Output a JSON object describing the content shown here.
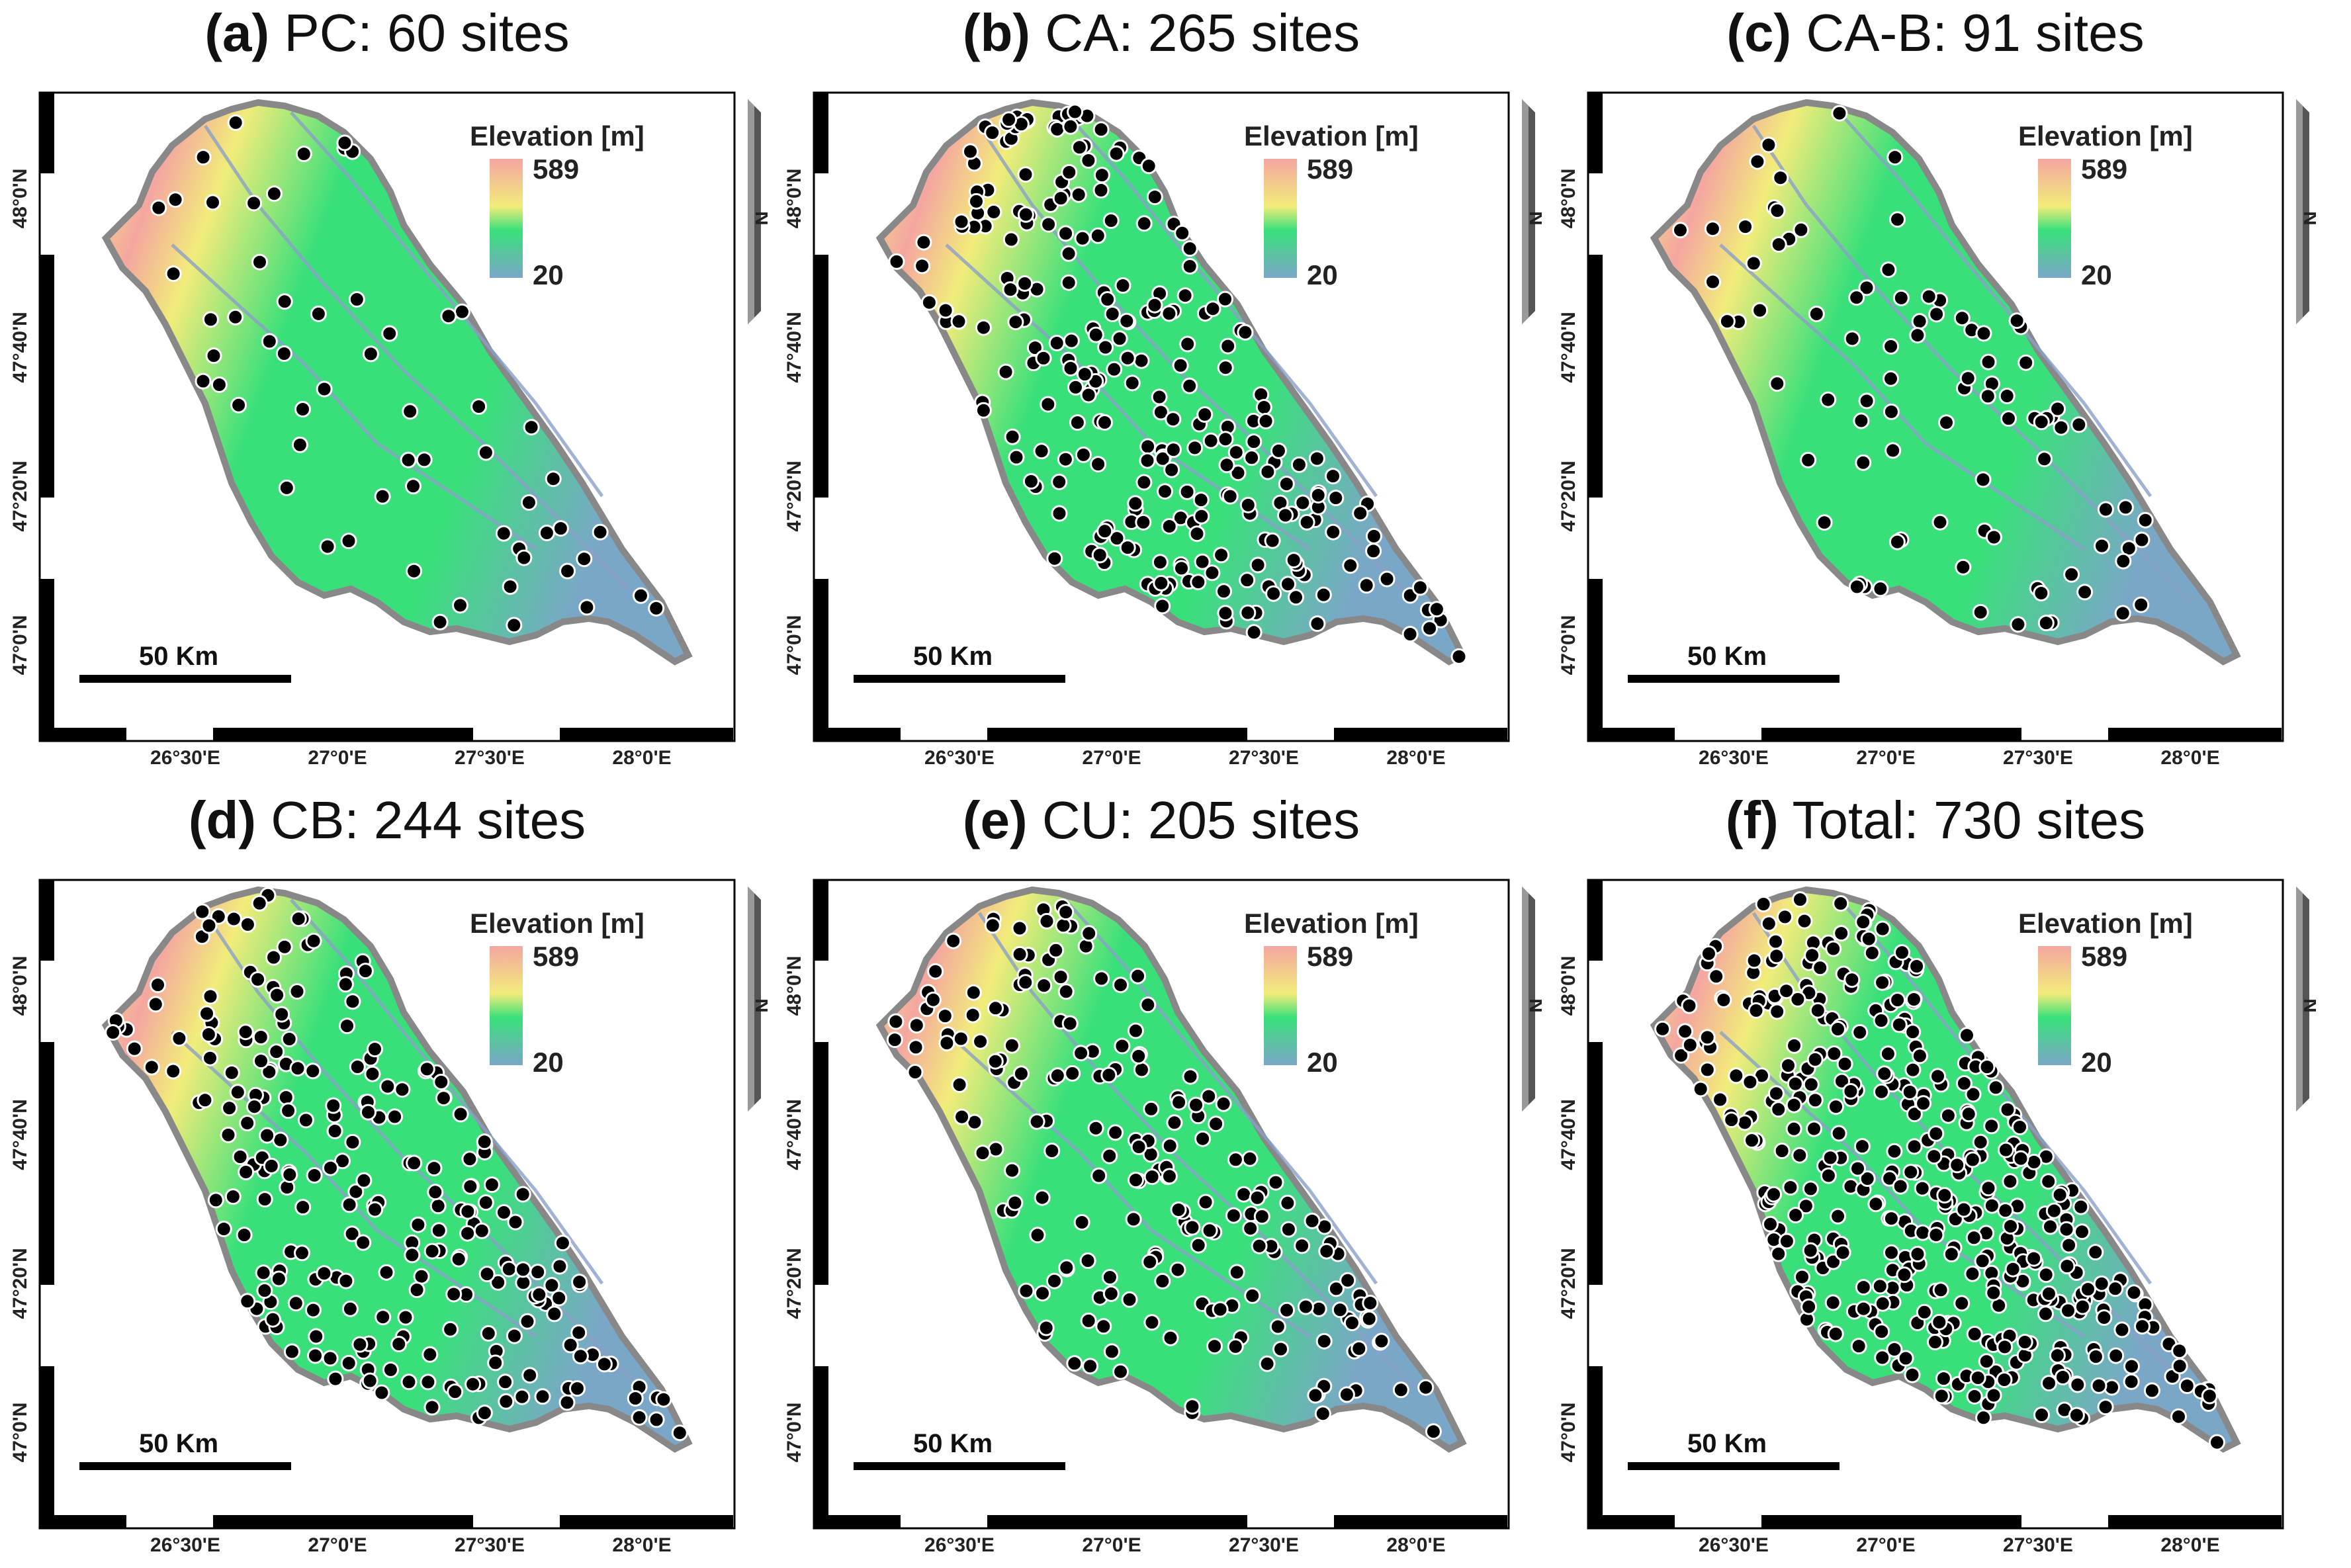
{
  "colors": {
    "elev_high": "#f4a6a0",
    "elev_mid_high": "#f2ec7a",
    "elev_mid": "#39e07a",
    "elev_low": "#7aa7c7",
    "river": "#8aa0c8",
    "border": "#888888",
    "site": "#000000"
  },
  "common": {
    "legend_title": "Elevation [m]",
    "legend_max": "589",
    "legend_min": "20",
    "scale_label": "50 Km",
    "north_label": "N",
    "x_ticks": [
      "26°30'E",
      "27°0'E",
      "27°30'E",
      "28°0'E"
    ],
    "y_ticks": [
      "48°0'N",
      "47°40'N",
      "47°20'N",
      "47°0'N"
    ]
  },
  "panels": [
    {
      "id": "a",
      "tag": "(a)",
      "title": "PC: 60 sites",
      "site_count": 60
    },
    {
      "id": "b",
      "tag": "(b)",
      "title": "CA: 265 sites",
      "site_count": 265
    },
    {
      "id": "c",
      "tag": "(c)",
      "title": "CA-B: 91 sites",
      "site_count": 91
    },
    {
      "id": "d",
      "tag": "(d)",
      "title": "CB: 244 sites",
      "site_count": 244
    },
    {
      "id": "e",
      "tag": "(e)",
      "title": "CU: 205 sites",
      "site_count": 205
    },
    {
      "id": "f",
      "tag": "(f)",
      "title": "Total: 730 sites",
      "site_count": 730
    }
  ]
}
